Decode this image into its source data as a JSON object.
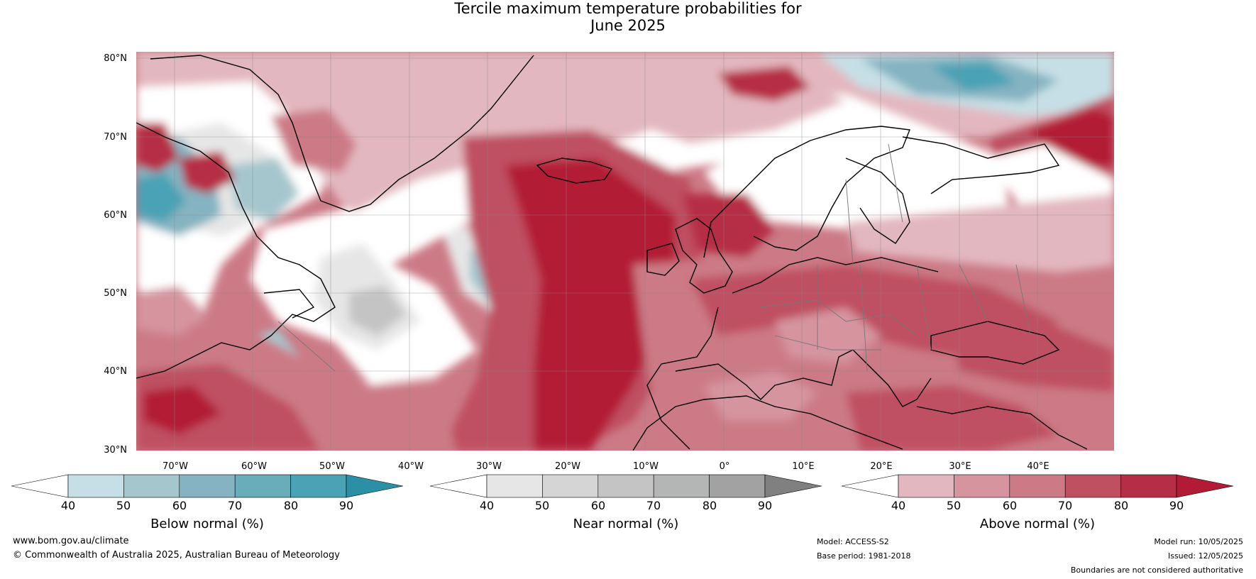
{
  "title": {
    "line1": "Tercile maximum temperature probabilities for",
    "line2": "June 2025"
  },
  "map": {
    "lat_labels": [
      "80°N",
      "70°N",
      "60°N",
      "50°N",
      "40°N",
      "30°N"
    ],
    "lon_labels": [
      "70°W",
      "60°W",
      "50°W",
      "40°W",
      "30°W",
      "20°W",
      "10°W",
      "0°",
      "10°E",
      "20°E",
      "30°E",
      "40°E"
    ]
  },
  "colorbars": [
    {
      "label": "Below normal (%)",
      "ticks": [
        "40",
        "50",
        "60",
        "70",
        "80",
        "90"
      ],
      "colors": [
        "#ffffff",
        "#c6dfe6",
        "#a6c6cd",
        "#85b3c1",
        "#69adbb",
        "#4aa2b5",
        "#2b8fa6"
      ]
    },
    {
      "label": "Near normal (%)",
      "ticks": [
        "40",
        "50",
        "60",
        "70",
        "80",
        "90"
      ],
      "colors": [
        "#ffffff",
        "#e6e6e6",
        "#d5d5d5",
        "#c4c4c4",
        "#b4b6b5",
        "#a2a2a2",
        "#808080"
      ]
    },
    {
      "label": "Above normal (%)",
      "ticks": [
        "40",
        "50",
        "60",
        "70",
        "80",
        "90"
      ],
      "colors": [
        "#ffffff",
        "#e3b7bf",
        "#d6949f",
        "#cc7a86",
        "#bf5062",
        "#b62e45",
        "#b21a36"
      ]
    }
  ],
  "footer": {
    "url": "www.bom.gov.au/climate",
    "copyright": "© Commonwealth of Australia 2025, Australian Bureau of Meteorology",
    "model": "Model: ACCESS-S2",
    "base_period": "Base period: 1981-2018",
    "model_run": "Model run: 10/05/2025",
    "issued": "Issued: 12/05/2025",
    "disclaimer": "Boundaries are not considered authoritative"
  }
}
